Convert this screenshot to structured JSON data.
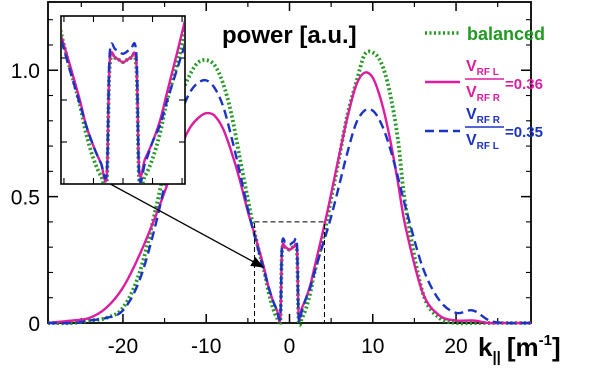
{
  "chart_data": {
    "type": "line",
    "title": "power [a.u.]",
    "xlabel_main": "k",
    "xlabel_sub": "||",
    "xlabel_unit": "[m",
    "xlabel_exp": "-1",
    "xlabel_close": "]",
    "xlim": [
      -29,
      29
    ],
    "ylim": [
      0,
      1.27
    ],
    "xticks": [
      -20,
      -10,
      0,
      10,
      20
    ],
    "xtick_labels": [
      "-20",
      "-10",
      "0",
      "10",
      "20"
    ],
    "yticks": [
      0,
      0.5,
      1.0
    ],
    "ytick_labels": [
      "0",
      "0.5",
      "1.0"
    ],
    "colors": {
      "balanced": "#229922",
      "left": "#dd1ca0",
      "right": "#1a33c4"
    },
    "legend": {
      "placement": "top-right",
      "balanced": "balanced",
      "left": {
        "num": "V",
        "num_sub": "RF L",
        "den": "V",
        "den_sub": "RF R",
        "value": "=0.36"
      },
      "right": {
        "num": "V",
        "num_sub": "RF R",
        "den": "V",
        "den_sub": "RF L",
        "value": "=0.35"
      }
    },
    "inset": {
      "placement": "top-left",
      "zoom_xlim": [
        -4.2,
        4.2
      ],
      "zoom_ylim": [
        0,
        0.4
      ]
    },
    "series": [
      {
        "key": "balanced",
        "style": "dotted",
        "x": [
          -29,
          -26,
          -24,
          -22,
          -20,
          -18,
          -16,
          -14,
          -13,
          -12,
          -11,
          -10,
          -9,
          -8,
          -7,
          -6,
          -5,
          -4,
          -3,
          -2.5,
          -2,
          -1.5,
          -1.1,
          -0.9,
          -0.5,
          0,
          0.5,
          0.9,
          1.1,
          1.5,
          2,
          2.5,
          3,
          4,
          5,
          6,
          7,
          8,
          9,
          10,
          11,
          12,
          13,
          14,
          16,
          18,
          20,
          22,
          24,
          26,
          29
        ],
        "y": [
          0.0,
          0.0,
          0.01,
          0.02,
          0.06,
          0.2,
          0.46,
          0.77,
          0.9,
          0.98,
          1.03,
          1.04,
          1.02,
          0.95,
          0.83,
          0.66,
          0.49,
          0.33,
          0.2,
          0.12,
          0.06,
          0.02,
          0.01,
          0.28,
          0.3,
          0.29,
          0.3,
          0.28,
          0.01,
          0.02,
          0.06,
          0.12,
          0.2,
          0.33,
          0.49,
          0.66,
          0.83,
          0.95,
          1.06,
          1.07,
          1.03,
          0.92,
          0.73,
          0.45,
          0.12,
          0.02,
          0.0,
          0.0,
          0.0,
          0.0,
          0.0
        ]
      },
      {
        "key": "left",
        "style": "solid",
        "x": [
          -29,
          -26,
          -24,
          -22,
          -20,
          -18,
          -16,
          -14,
          -13,
          -12,
          -11,
          -10,
          -9,
          -8,
          -7,
          -6,
          -5,
          -4,
          -3,
          -2.5,
          -2,
          -1.5,
          -1.1,
          -0.9,
          -0.5,
          0,
          0.5,
          0.9,
          1.1,
          1.5,
          2,
          2.5,
          3,
          4,
          5,
          6,
          7,
          8,
          9,
          10,
          11,
          12,
          13,
          14,
          16,
          18,
          20,
          22,
          24,
          26,
          29
        ],
        "y": [
          0.0,
          0.01,
          0.02,
          0.06,
          0.14,
          0.27,
          0.43,
          0.61,
          0.7,
          0.77,
          0.81,
          0.83,
          0.82,
          0.77,
          0.68,
          0.57,
          0.44,
          0.33,
          0.21,
          0.14,
          0.09,
          0.05,
          0.02,
          0.29,
          0.3,
          0.29,
          0.3,
          0.29,
          0.03,
          0.06,
          0.1,
          0.15,
          0.22,
          0.36,
          0.51,
          0.67,
          0.82,
          0.94,
          0.99,
          0.97,
          0.88,
          0.74,
          0.56,
          0.37,
          0.12,
          0.03,
          0.01,
          0.01,
          0.0,
          0.0,
          0.0
        ]
      },
      {
        "key": "right",
        "style": "dashed",
        "x": [
          -29,
          -26,
          -24,
          -22,
          -20,
          -18,
          -16,
          -14,
          -13,
          -12,
          -11,
          -10,
          -9,
          -8,
          -7,
          -6,
          -5,
          -4,
          -3,
          -2.5,
          -2,
          -1.5,
          -1.1,
          -0.9,
          -0.5,
          0,
          0.5,
          0.9,
          1.1,
          1.5,
          2,
          2.5,
          3,
          4,
          5,
          6,
          7,
          8,
          9,
          10,
          11,
          12,
          13,
          14,
          16,
          18,
          20,
          22,
          24,
          26,
          29
        ],
        "y": [
          0.0,
          0.0,
          0.01,
          0.02,
          0.05,
          0.17,
          0.4,
          0.7,
          0.83,
          0.91,
          0.95,
          0.96,
          0.93,
          0.86,
          0.74,
          0.6,
          0.45,
          0.32,
          0.2,
          0.14,
          0.09,
          0.05,
          0.03,
          0.31,
          0.32,
          0.31,
          0.32,
          0.31,
          0.02,
          0.05,
          0.1,
          0.14,
          0.2,
          0.31,
          0.42,
          0.55,
          0.68,
          0.79,
          0.84,
          0.84,
          0.79,
          0.7,
          0.58,
          0.45,
          0.22,
          0.09,
          0.04,
          0.05,
          0.01,
          0.0,
          0.0
        ]
      }
    ]
  }
}
